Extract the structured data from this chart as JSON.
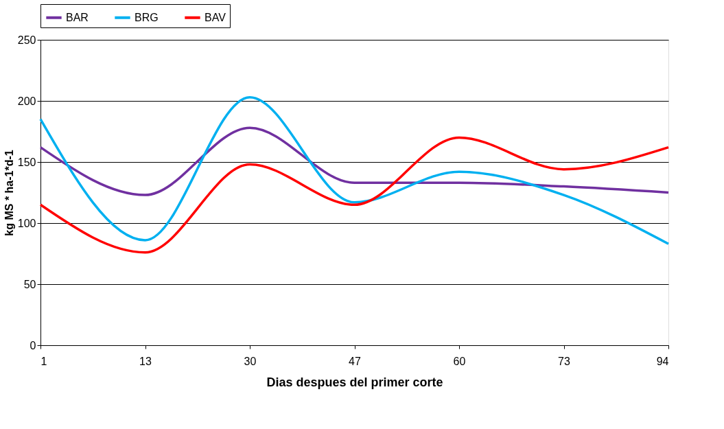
{
  "chart_data": {
    "type": "line",
    "xlabel": "Dias despues del primer corte",
    "ylabel": "kg MS * ha-1*d-1",
    "categories": [
      "1",
      "13",
      "30",
      "47",
      "60",
      "73",
      "94"
    ],
    "series": [
      {
        "name": "BAR",
        "color": "#7030a0",
        "values": [
          162,
          123,
          178,
          133,
          133,
          130,
          125
        ]
      },
      {
        "name": "BRG",
        "color": "#00b0f0",
        "values": [
          185,
          86,
          203,
          117,
          142,
          123,
          83
        ]
      },
      {
        "name": "BAV",
        "color": "#ff0000",
        "values": [
          115,
          76,
          148,
          115,
          170,
          144,
          162
        ]
      }
    ],
    "ylim": [
      0,
      250
    ],
    "yticks": [
      0,
      50,
      100,
      150,
      200,
      250
    ],
    "grid": "y",
    "legend": "top",
    "marker": "none",
    "line_style": "solid"
  }
}
